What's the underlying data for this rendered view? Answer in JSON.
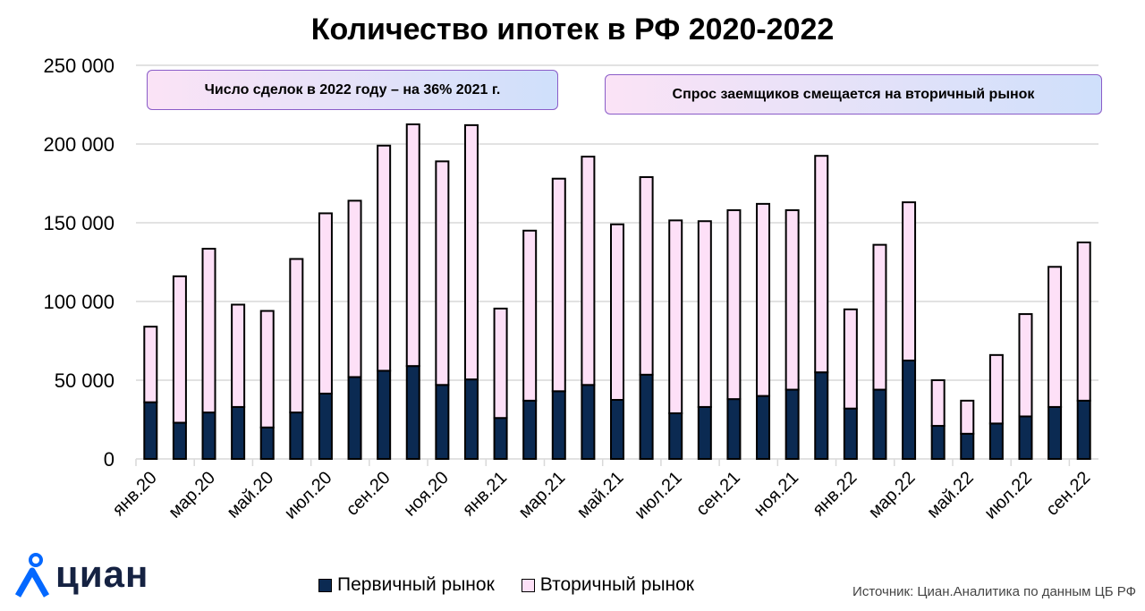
{
  "chart_data": {
    "type": "bar",
    "stacked": true,
    "title": "Количество ипотек в РФ 2020-2022",
    "xlabel": "",
    "ylabel": "",
    "ylim": [
      0,
      250000
    ],
    "yticks": [
      0,
      50000,
      100000,
      150000,
      200000,
      250000
    ],
    "ytick_labels": [
      "0",
      "50 000",
      "100 000",
      "150 000",
      "200 000",
      "250 000"
    ],
    "grid": true,
    "categories": [
      "янв.20",
      "фев.20",
      "мар.20",
      "апр.20",
      "май.20",
      "июн.20",
      "июл.20",
      "авг.20",
      "сен.20",
      "окт.20",
      "ноя.20",
      "дек.20",
      "янв.21",
      "фев.21",
      "мар.21",
      "апр.21",
      "май.21",
      "июн.21",
      "июл.21",
      "авг.21",
      "сен.21",
      "окт.21",
      "ноя.21",
      "дек.21",
      "янв.22",
      "фев.22",
      "мар.22",
      "апр.22",
      "май.22",
      "июн.22",
      "июл.22",
      "авг.22",
      "сен.22"
    ],
    "xtick_labels_shown": [
      "янв.20",
      "мар.20",
      "май.20",
      "июл.20",
      "сен.20",
      "ноя.20",
      "янв.21",
      "мар.21",
      "май.21",
      "июл.21",
      "сен.21",
      "ноя.21",
      "янв.22",
      "мар.22",
      "май.22",
      "июл.22",
      "сен.22"
    ],
    "series": [
      {
        "name": "Первичный рынок",
        "color": "#0b2a52",
        "values": [
          36000,
          23000,
          29500,
          33000,
          20000,
          29500,
          41500,
          52000,
          56000,
          59000,
          47000,
          50500,
          26000,
          37000,
          43000,
          47000,
          37500,
          53500,
          29000,
          33000,
          38000,
          40000,
          44000,
          55000,
          32000,
          44000,
          62500,
          21000,
          16000,
          22500,
          27000,
          33000,
          37000
        ]
      },
      {
        "name": "Вторичный рынок",
        "color": "#fde0f7",
        "values": [
          48000,
          93000,
          104000,
          65000,
          74000,
          97500,
          114500,
          112000,
          143000,
          153500,
          142000,
          161500,
          69500,
          108000,
          135000,
          145000,
          111500,
          125500,
          122500,
          118000,
          120000,
          122000,
          114000,
          137500,
          63000,
          92000,
          100500,
          29000,
          21000,
          43500,
          65000,
          89000,
          100500
        ]
      }
    ],
    "legend_position": "bottom",
    "annotations": [
      "Число сделок в 2022 году – на 36% 2021 г.",
      "Спрос заемщиков смещается на вторичный рынок"
    ]
  },
  "footer": {
    "logo": "циан",
    "source": "Источник: Циан.Аналитика по данным ЦБ РФ"
  }
}
